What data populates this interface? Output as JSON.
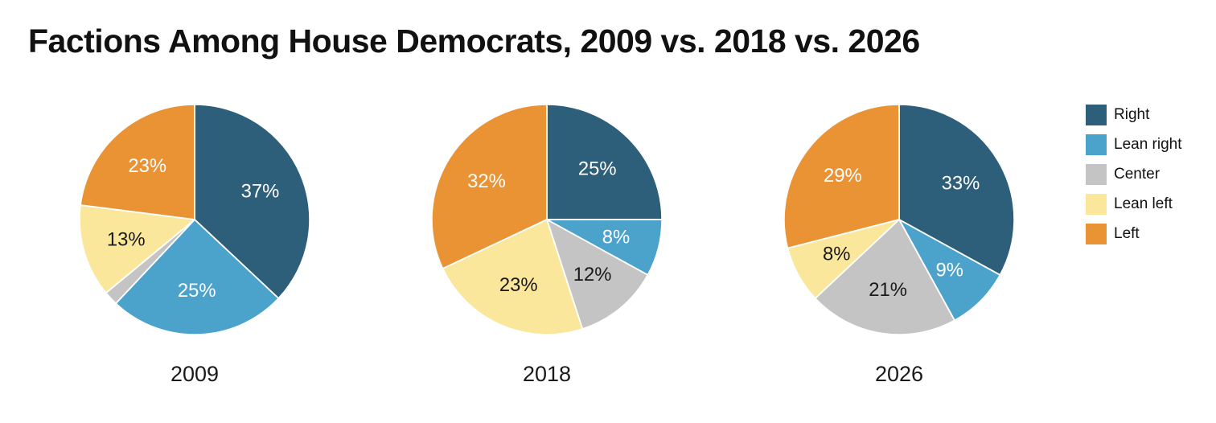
{
  "title": "Factions Among House Democrats, 2009 vs. 2018 vs. 2026",
  "legend": {
    "position": "right",
    "items": [
      {
        "label": "Right",
        "color": "#2E5F7A"
      },
      {
        "label": "Lean right",
        "color": "#4BA2CB"
      },
      {
        "label": "Center",
        "color": "#C4C4C4"
      },
      {
        "label": "Lean left",
        "color": "#FAE79C"
      },
      {
        "label": "Left",
        "color": "#E99335"
      }
    ]
  },
  "chart_data": [
    {
      "type": "pie",
      "label": "2009",
      "categories": [
        "Right",
        "Lean right",
        "Center",
        "Lean left",
        "Left"
      ],
      "values": [
        37,
        25,
        2,
        13,
        23
      ],
      "slice_labels": [
        "37%",
        "25%",
        "",
        "13%",
        "23%"
      ],
      "label_colors": [
        "#ffffff",
        "#ffffff",
        "",
        "#1a1a1a",
        "#ffffff"
      ],
      "start_angle_deg": 0,
      "direction": "clockwise"
    },
    {
      "type": "pie",
      "label": "2018",
      "categories": [
        "Right",
        "Lean right",
        "Center",
        "Lean left",
        "Left"
      ],
      "values": [
        25,
        8,
        12,
        23,
        32
      ],
      "slice_labels": [
        "25%",
        "8%",
        "12%",
        "23%",
        "32%"
      ],
      "label_colors": [
        "#ffffff",
        "#ffffff",
        "#1a1a1a",
        "#1a1a1a",
        "#ffffff"
      ],
      "start_angle_deg": 0,
      "direction": "clockwise"
    },
    {
      "type": "pie",
      "label": "2026",
      "categories": [
        "Right",
        "Lean right",
        "Center",
        "Lean left",
        "Left"
      ],
      "values": [
        33,
        9,
        21,
        8,
        29
      ],
      "slice_labels": [
        "33%",
        "9%",
        "21%",
        "8%",
        "29%"
      ],
      "label_colors": [
        "#ffffff",
        "#ffffff",
        "#1a1a1a",
        "#1a1a1a",
        "#ffffff"
      ],
      "start_angle_deg": 0,
      "direction": "clockwise"
    }
  ]
}
